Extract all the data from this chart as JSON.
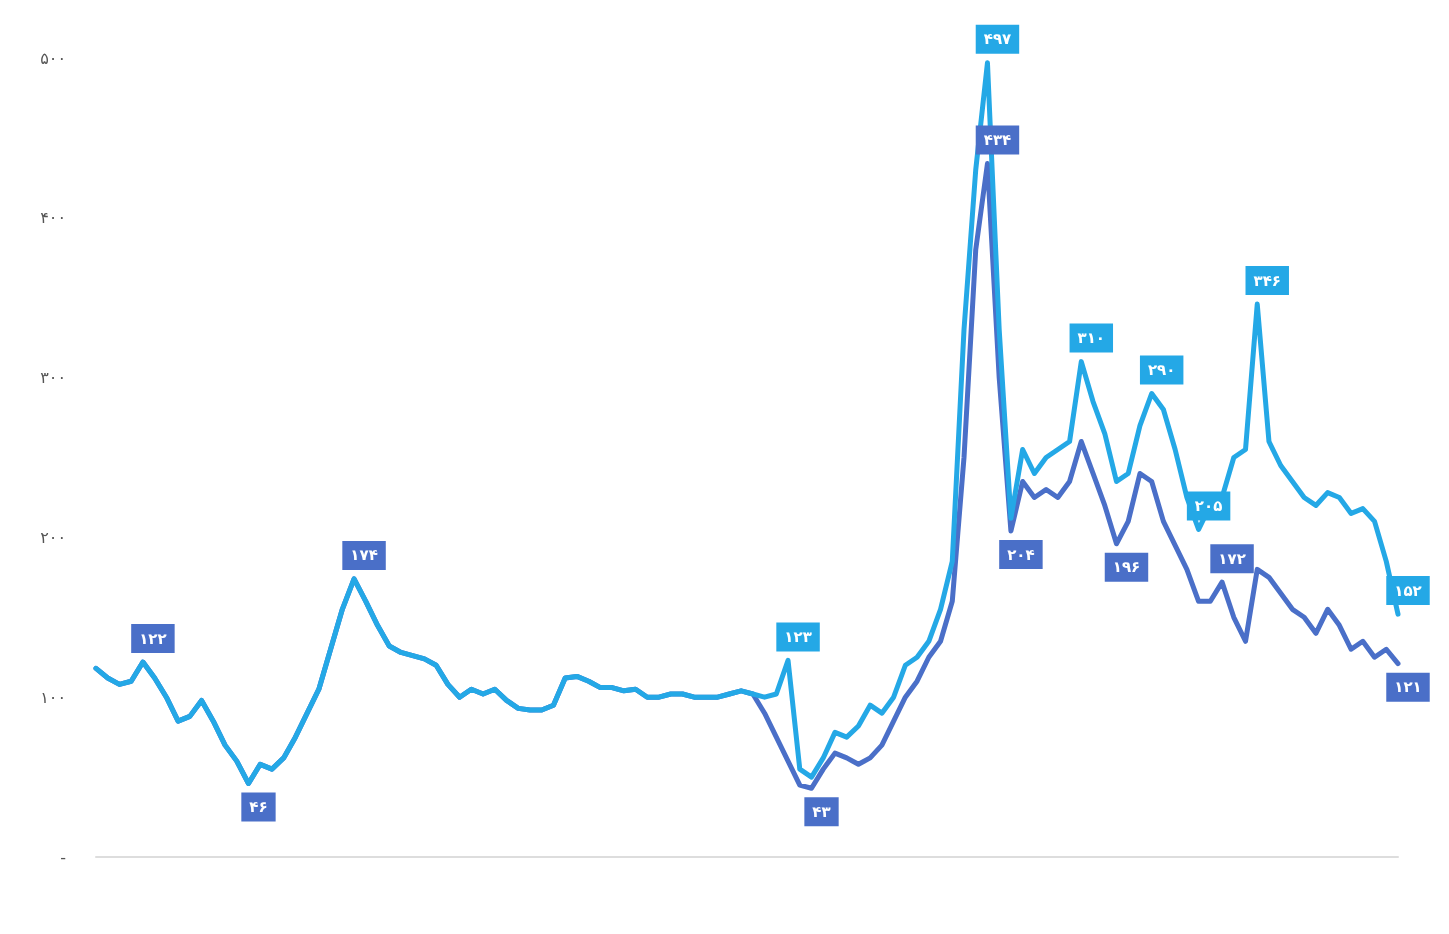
{
  "chart_data": {
    "type": "line",
    "categories": [
      null,
      null,
      null,
      null,
      null,
      null,
      null,
      null,
      null,
      null,
      null,
      null,
      null,
      null,
      null,
      null,
      null,
      null,
      null,
      null,
      null,
      null,
      null,
      null,
      null,
      null,
      null,
      null,
      null,
      null,
      null,
      null,
      null,
      null,
      null,
      null,
      null,
      null,
      null,
      null,
      null,
      null,
      null,
      null,
      null,
      null,
      null,
      null,
      null,
      null,
      null,
      null,
      null,
      null,
      null,
      null,
      null,
      null,
      null,
      null,
      null,
      null,
      null,
      null,
      null,
      null,
      null,
      null,
      null,
      null,
      null,
      null,
      null,
      null,
      null,
      null,
      null,
      null,
      null,
      null,
      null,
      null,
      null,
      null,
      null,
      null,
      null,
      null,
      null,
      null,
      null,
      null,
      null,
      null,
      null,
      null,
      null,
      null,
      null,
      null,
      null,
      null,
      null,
      null,
      null,
      null,
      null,
      null,
      null,
      null,
      null,
      null
    ],
    "series": [
      {
        "color": "#4a6fc8",
        "values": [
          118,
          112,
          108,
          110,
          122,
          112,
          100,
          85,
          88,
          98,
          85,
          70,
          60,
          46,
          58,
          55,
          62,
          75,
          90,
          105,
          130,
          155,
          174,
          160,
          145,
          132,
          128,
          126,
          124,
          120,
          108,
          100,
          105,
          102,
          105,
          98,
          93,
          92,
          92,
          95,
          112,
          113,
          110,
          106,
          106,
          104,
          105,
          100,
          100,
          102,
          102,
          100,
          100,
          100,
          102,
          104,
          102,
          90,
          75,
          60,
          45,
          43,
          55,
          65,
          62,
          58,
          62,
          70,
          85,
          100,
          110,
          125,
          135,
          160,
          250,
          380,
          434,
          300,
          204,
          235,
          225,
          230,
          225,
          235,
          260,
          240,
          220,
          196,
          210,
          240,
          235,
          210,
          195,
          180,
          160,
          160,
          172,
          150,
          135,
          180,
          175,
          165,
          155,
          150,
          140,
          155,
          145,
          130,
          135,
          125,
          130,
          121
        ],
        "value_labels": [
          null,
          null,
          null,
          null,
          "۱۲۲",
          null,
          null,
          null,
          null,
          null,
          null,
          null,
          null,
          "۴۶",
          null,
          null,
          null,
          null,
          null,
          null,
          null,
          null,
          "۱۷۴",
          null,
          null,
          null,
          null,
          null,
          null,
          null,
          null,
          null,
          null,
          null,
          null,
          null,
          null,
          null,
          null,
          null,
          null,
          null,
          null,
          null,
          null,
          null,
          null,
          null,
          null,
          null,
          null,
          null,
          null,
          null,
          null,
          null,
          null,
          null,
          null,
          null,
          null,
          "۴۳",
          null,
          null,
          null,
          null,
          null,
          null,
          null,
          null,
          null,
          null,
          null,
          null,
          null,
          null,
          "۴۳۴",
          null,
          "۲۰۴",
          null,
          null,
          null,
          null,
          null,
          null,
          null,
          null,
          "۱۹۶",
          null,
          null,
          null,
          null,
          null,
          null,
          null,
          null,
          "۱۷۲",
          null,
          null,
          null,
          null,
          null,
          null,
          null,
          null,
          null,
          null,
          null,
          null,
          null,
          null,
          "۱۲۱"
        ]
      },
      {
        "color": "#24a8e6",
        "values": [
          118,
          112,
          108,
          110,
          122,
          112,
          100,
          85,
          88,
          98,
          85,
          70,
          60,
          46,
          58,
          55,
          62,
          75,
          90,
          105,
          130,
          155,
          174,
          160,
          145,
          132,
          128,
          126,
          124,
          120,
          108,
          100,
          105,
          102,
          105,
          98,
          93,
          92,
          92,
          95,
          112,
          113,
          110,
          106,
          106,
          104,
          105,
          100,
          100,
          102,
          102,
          100,
          100,
          100,
          102,
          104,
          102,
          100,
          102,
          123,
          55,
          50,
          62,
          78,
          75,
          82,
          95,
          90,
          100,
          120,
          125,
          135,
          155,
          185,
          330,
          430,
          497,
          330,
          212,
          255,
          240,
          250,
          255,
          260,
          310,
          285,
          265,
          235,
          240,
          270,
          290,
          280,
          255,
          225,
          205,
          220,
          225,
          250,
          255,
          346,
          260,
          245,
          235,
          225,
          220,
          228,
          225,
          215,
          218,
          210,
          185,
          152
        ],
        "value_labels": [
          null,
          null,
          null,
          null,
          null,
          null,
          null,
          null,
          null,
          null,
          null,
          null,
          null,
          null,
          null,
          null,
          null,
          null,
          null,
          null,
          null,
          null,
          null,
          null,
          null,
          null,
          null,
          null,
          null,
          null,
          null,
          null,
          null,
          null,
          null,
          null,
          null,
          null,
          null,
          null,
          null,
          null,
          null,
          null,
          null,
          null,
          null,
          null,
          null,
          null,
          null,
          null,
          null,
          null,
          null,
          null,
          null,
          null,
          null,
          "۱۲۳",
          null,
          null,
          null,
          null,
          null,
          null,
          null,
          null,
          null,
          null,
          null,
          null,
          null,
          null,
          null,
          null,
          "۴۹۷",
          null,
          null,
          null,
          null,
          null,
          null,
          null,
          "۳۱۰",
          null,
          null,
          null,
          null,
          null,
          "۲۹۰",
          null,
          null,
          null,
          "۲۰۵",
          null,
          null,
          null,
          null,
          "۳۴۶",
          null,
          null,
          null,
          null,
          null,
          null,
          null,
          null,
          null,
          null,
          null,
          "۱۵۲"
        ]
      }
    ],
    "ylim": [
      0,
      500
    ],
    "yticks": [
      {
        "value": 0,
        "label": "-"
      },
      {
        "value": 100,
        "label": "۱۰۰"
      },
      {
        "value": 200,
        "label": "۲۰۰"
      },
      {
        "value": 300,
        "label": "۳۰۰"
      },
      {
        "value": 400,
        "label": "۴۰۰"
      },
      {
        "value": 500,
        "label": "۵۰۰"
      }
    ],
    "grid": false,
    "marker": "none",
    "line_style": "solid"
  }
}
